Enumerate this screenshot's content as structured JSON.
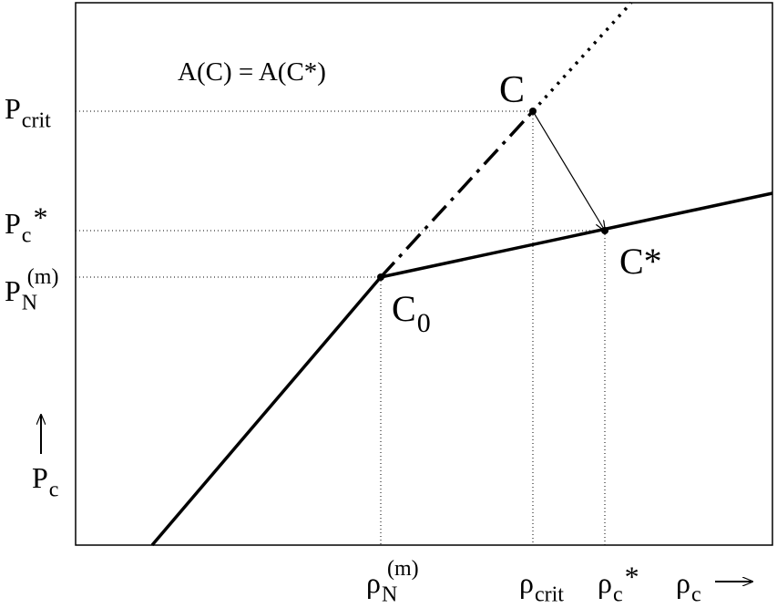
{
  "annotation": "A(C) = A(C*)",
  "points": [
    {
      "base": "C"
    },
    {
      "base": "C*"
    },
    {
      "base": "C",
      "sub": "0"
    }
  ],
  "y_labels": [
    {
      "base": "P",
      "sub": "crit"
    },
    {
      "base": "P",
      "sub": "c",
      "tail": "*"
    },
    {
      "base": "P",
      "sub": "N",
      "sup": "(m)"
    }
  ],
  "y_axis_label": {
    "base": "P",
    "sub": "c"
  },
  "x_labels": [
    {
      "base": "ρ",
      "sub": "N",
      "sup": "(m)"
    },
    {
      "base": "ρ",
      "sub": "crit"
    },
    {
      "base": "ρ",
      "sub": "c",
      "tail": "*"
    }
  ],
  "x_axis_label": {
    "base": "ρ",
    "sub": "c"
  }
}
